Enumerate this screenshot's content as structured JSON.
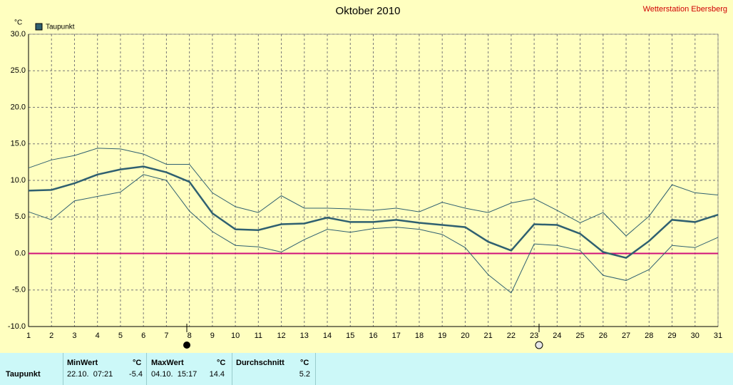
{
  "chart_data": {
    "type": "line",
    "title": "Oktober 2010",
    "station": "Wetterstation Ebersberg",
    "y_unit": "°C",
    "categories": [
      "1",
      "2",
      "3",
      "4",
      "5",
      "6",
      "7",
      "8",
      "9",
      "10",
      "11",
      "12",
      "13",
      "14",
      "15",
      "16",
      "17",
      "18",
      "19",
      "20",
      "21",
      "22",
      "23",
      "24",
      "25",
      "26",
      "27",
      "28",
      "29",
      "30",
      "31"
    ],
    "series": [
      {
        "name": "Taupunkt",
        "color": "#2f6070",
        "width": 2.5,
        "values": [
          8.6,
          8.7,
          9.6,
          10.8,
          11.5,
          11.9,
          11.1,
          9.8,
          5.5,
          3.3,
          3.2,
          4.0,
          4.1,
          4.9,
          4.3,
          4.3,
          4.6,
          4.2,
          3.9,
          3.6,
          1.6,
          0.4,
          4.0,
          3.9,
          2.7,
          0.2,
          -0.6,
          1.7,
          4.6,
          4.3,
          5.3
        ]
      },
      {
        "color": "#2f6070",
        "width": 1,
        "values": [
          11.7,
          12.8,
          13.4,
          14.4,
          14.3,
          13.6,
          12.2,
          12.2,
          8.3,
          6.4,
          5.6,
          7.9,
          6.2,
          6.2,
          6.1,
          5.9,
          6.2,
          5.7,
          7.0,
          6.2,
          5.6,
          6.9,
          7.5,
          5.9,
          4.2,
          5.6,
          2.4,
          5.1,
          9.4,
          8.3,
          8.0
        ]
      },
      {
        "color": "#2f6070",
        "width": 1,
        "values": [
          5.7,
          4.6,
          7.2,
          7.8,
          8.4,
          10.8,
          10.0,
          5.8,
          3.0,
          1.1,
          0.9,
          0.2,
          1.9,
          3.3,
          2.9,
          3.4,
          3.6,
          3.3,
          2.6,
          0.8,
          -2.9,
          -5.4,
          1.3,
          1.1,
          0.4,
          -3.0,
          -3.7,
          -2.2,
          1.1,
          0.8,
          2.2
        ]
      }
    ],
    "ylim": [
      -10,
      30
    ],
    "yticks": [
      {
        "value": -10,
        "label": "-10.0"
      },
      {
        "value": -5,
        "label": "-5.0"
      },
      {
        "value": 0,
        "label": "0.0"
      },
      {
        "value": 5,
        "label": "5.0"
      },
      {
        "value": 10,
        "label": "10.0"
      },
      {
        "value": 15,
        "label": "15.0"
      },
      {
        "value": 20,
        "label": "20.0"
      },
      {
        "value": 25,
        "label": "25.0"
      },
      {
        "value": 30,
        "label": "30.0"
      }
    ],
    "grid": true,
    "zero_line_color": "#d0107a"
  },
  "table": {
    "header": [
      "MinWert",
      "°C",
      "MaxWert",
      "°C",
      "Durchschnitt",
      "°C"
    ],
    "rows": [
      [
        "Taupunkt",
        "22.10.  07:21",
        -5.4,
        "04.10.  15:17",
        14.4,
        5.2
      ]
    ]
  }
}
